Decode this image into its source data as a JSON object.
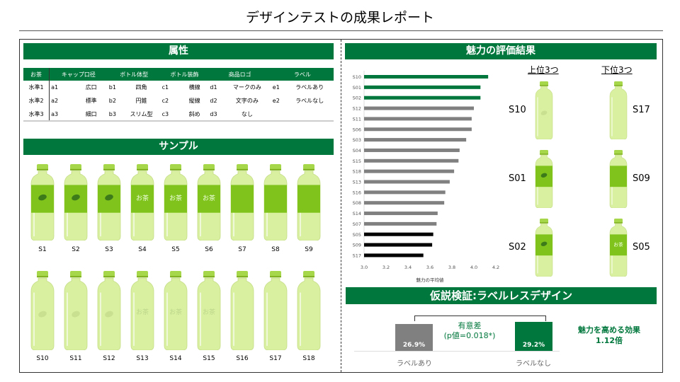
{
  "title": "デザインテストの成果レポート",
  "attributes": {
    "header": "属性",
    "columns": [
      "お茶",
      "キャップ口径",
      "ボトル体型",
      "ボトル装飾",
      "商品ロゴ",
      "ラベル"
    ],
    "rows": [
      {
        "level": "水準1",
        "cells": [
          [
            "a1",
            "広口"
          ],
          [
            "b1",
            "四角"
          ],
          [
            "c1",
            "横線"
          ],
          [
            "d1",
            "マークのみ"
          ],
          [
            "e1",
            "ラベルあり"
          ]
        ]
      },
      {
        "level": "水準2",
        "cells": [
          [
            "a2",
            "標準"
          ],
          [
            "b2",
            "円錐"
          ],
          [
            "c2",
            "縦線"
          ],
          [
            "d2",
            "文字のみ"
          ],
          [
            "e2",
            "ラベルなし"
          ]
        ]
      },
      {
        "level": "水準3",
        "cells": [
          [
            "a3",
            "細口"
          ],
          [
            "b3",
            "スリム型"
          ],
          [
            "c3",
            "斜め"
          ],
          [
            "d3",
            "なし"
          ],
          [
            "",
            ""
          ]
        ]
      }
    ]
  },
  "samples": {
    "header": "サンプル",
    "items": [
      {
        "name": "S1",
        "label": true,
        "logo": "leaf"
      },
      {
        "name": "S2",
        "label": true,
        "logo": "leaf"
      },
      {
        "name": "S3",
        "label": true,
        "logo": "leaf"
      },
      {
        "name": "S4",
        "label": true,
        "logo": "お茶"
      },
      {
        "name": "S5",
        "label": true,
        "logo": "お茶"
      },
      {
        "name": "S6",
        "label": true,
        "logo": "お茶"
      },
      {
        "name": "S7",
        "label": true,
        "logo": ""
      },
      {
        "name": "S8",
        "label": true,
        "logo": ""
      },
      {
        "name": "S9",
        "label": true,
        "logo": ""
      },
      {
        "name": "S10",
        "label": false,
        "logo": "leaf"
      },
      {
        "name": "S11",
        "label": false,
        "logo": "leaf"
      },
      {
        "name": "S12",
        "label": false,
        "logo": "leaf"
      },
      {
        "name": "S13",
        "label": false,
        "logo": "お茶"
      },
      {
        "name": "S14",
        "label": false,
        "logo": "お茶"
      },
      {
        "name": "S15",
        "label": false,
        "logo": "お茶"
      },
      {
        "name": "S16",
        "label": false,
        "logo": ""
      },
      {
        "name": "S17",
        "label": false,
        "logo": ""
      },
      {
        "name": "S18",
        "label": false,
        "logo": ""
      }
    ]
  },
  "evaluation": {
    "header": "魅力の評価結果",
    "top_title": "上位3つ",
    "bottom_title": "下位3つ",
    "top": [
      {
        "name": "S10",
        "label": false,
        "logo": "leaf"
      },
      {
        "name": "S01",
        "label": true,
        "logo": "leaf"
      },
      {
        "name": "S02",
        "label": true,
        "logo": "leaf"
      }
    ],
    "bottom": [
      {
        "name": "S17",
        "label": false,
        "logo": ""
      },
      {
        "name": "S09",
        "label": true,
        "logo": ""
      },
      {
        "name": "S05",
        "label": true,
        "logo": "お茶"
      }
    ]
  },
  "chart_data": {
    "type": "bar",
    "orientation": "horizontal",
    "categories": [
      "S10",
      "S01",
      "S02",
      "S12",
      "S11",
      "S06",
      "S03",
      "S04",
      "S15",
      "S18",
      "S13",
      "S16",
      "S08",
      "S14",
      "S07",
      "S05",
      "S09",
      "S17"
    ],
    "values": [
      4.13,
      4.06,
      4.06,
      4.0,
      3.98,
      3.98,
      3.93,
      3.87,
      3.86,
      3.82,
      3.78,
      3.74,
      3.73,
      3.67,
      3.66,
      3.63,
      3.62,
      3.54
    ],
    "groups": [
      "top",
      "top",
      "top",
      "mid",
      "mid",
      "mid",
      "mid",
      "mid",
      "mid",
      "mid",
      "mid",
      "mid",
      "mid",
      "mid",
      "mid",
      "bottom",
      "bottom",
      "bottom"
    ],
    "colors": {
      "top": "#00773c",
      "mid": "#808080",
      "bottom": "#000000"
    },
    "xlabel": "魅力の平均値",
    "xlim": [
      3.0,
      4.2
    ],
    "xticks": [
      "3.0",
      "3.2",
      "3.4",
      "3.6",
      "3.8",
      "4.0",
      "4.2"
    ]
  },
  "hypothesis": {
    "header": "仮説検証:ラベルレスデザイン",
    "bars": [
      {
        "label": "ラベルあり",
        "value": 26.9,
        "text": "26.9%",
        "color": "#808080"
      },
      {
        "label": "ラベルなし",
        "value": 29.2,
        "text": "29.2%",
        "color": "#00773c"
      }
    ],
    "significance": "有意差",
    "pvalue": "(p値=0.018*)",
    "effect_title": "魅力を高める効果",
    "effect_value": "1.12倍"
  }
}
